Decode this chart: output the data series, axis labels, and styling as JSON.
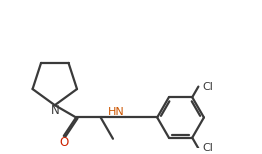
{
  "line_color": "#3a3a3a",
  "text_color_N": "#3a3a3a",
  "text_color_O": "#cc2200",
  "text_color_HN": "#cc5500",
  "text_color_Cl": "#3a3a3a",
  "bg_color": "#ffffff",
  "line_width": 1.6,
  "font_size_atoms": 8.5,
  "font_size_Cl": 8.0,
  "xlim": [
    0.0,
    10.0
  ],
  "ylim": [
    1.5,
    7.5
  ]
}
